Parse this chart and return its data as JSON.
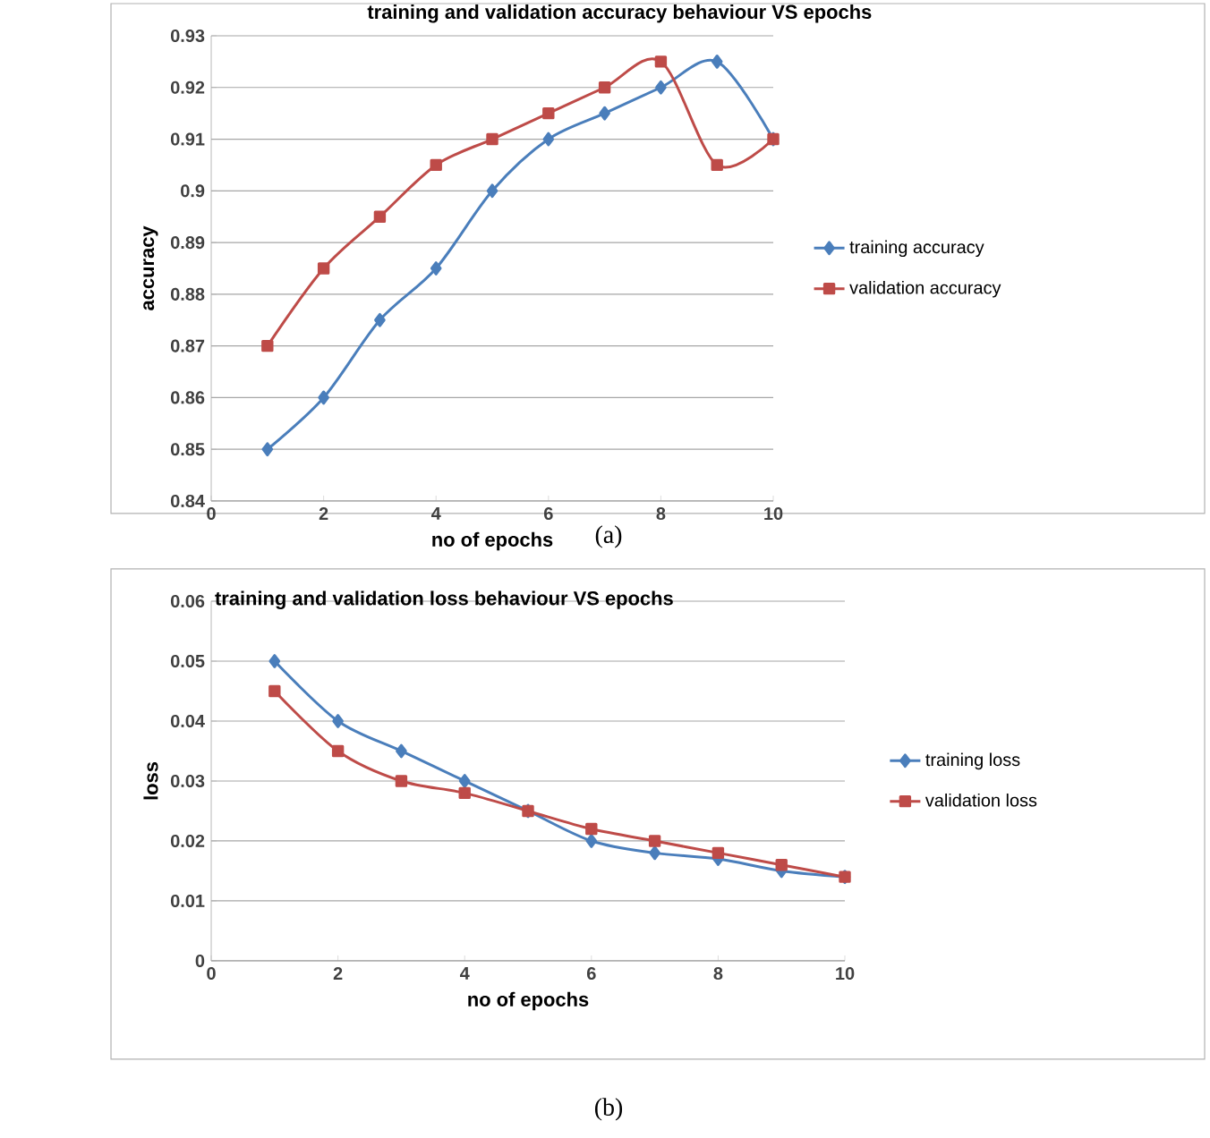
{
  "chart_data": [
    {
      "type": "line",
      "title": "training and validation accuracy behaviour VS epochs",
      "xlabel": "no of epochs",
      "ylabel": "accuracy",
      "annotations": [
        "(a)"
      ],
      "x": [
        1,
        2,
        3,
        4,
        5,
        6,
        7,
        8,
        9,
        10
      ],
      "series": [
        {
          "name": "training accuracy",
          "color": "#4a7ebb",
          "marker": "diamond",
          "values": [
            0.85,
            0.86,
            0.875,
            0.885,
            0.9,
            0.91,
            0.915,
            0.92,
            0.925,
            0.91
          ]
        },
        {
          "name": "validation accuracy",
          "color": "#be4b48",
          "marker": "square",
          "values": [
            0.87,
            0.885,
            0.895,
            0.905,
            0.91,
            0.915,
            0.92,
            0.925,
            0.905,
            0.91
          ]
        }
      ],
      "xlim": [
        0,
        10
      ],
      "xticks": [
        0,
        2,
        4,
        6,
        8,
        10
      ],
      "ylim": [
        0.84,
        0.93
      ],
      "yticks": [
        0.84,
        0.85,
        0.86,
        0.87,
        0.88,
        0.89,
        0.9,
        0.91,
        0.92,
        0.93
      ],
      "grid": "y",
      "legend": "right"
    },
    {
      "type": "line",
      "title": "training and validation loss behaviour VS epochs",
      "xlabel": "no of epochs",
      "ylabel": "loss",
      "annotations": [
        "(b)"
      ],
      "x": [
        1,
        2,
        3,
        4,
        5,
        6,
        7,
        8,
        9,
        10
      ],
      "series": [
        {
          "name": "training loss",
          "color": "#4a7ebb",
          "marker": "diamond",
          "values": [
            0.05,
            0.04,
            0.035,
            0.03,
            0.025,
            0.02,
            0.018,
            0.017,
            0.015,
            0.014
          ]
        },
        {
          "name": "validation loss",
          "color": "#be4b48",
          "marker": "square",
          "values": [
            0.045,
            0.035,
            0.03,
            0.028,
            0.025,
            0.022,
            0.02,
            0.018,
            0.016,
            0.014
          ]
        }
      ],
      "xlim": [
        0,
        10
      ],
      "xticks": [
        0,
        2,
        4,
        6,
        8,
        10
      ],
      "ylim": [
        0,
        0.06
      ],
      "yticks": [
        0,
        0.01,
        0.02,
        0.03,
        0.04,
        0.05,
        0.06
      ],
      "grid": "y",
      "legend": "right"
    }
  ]
}
